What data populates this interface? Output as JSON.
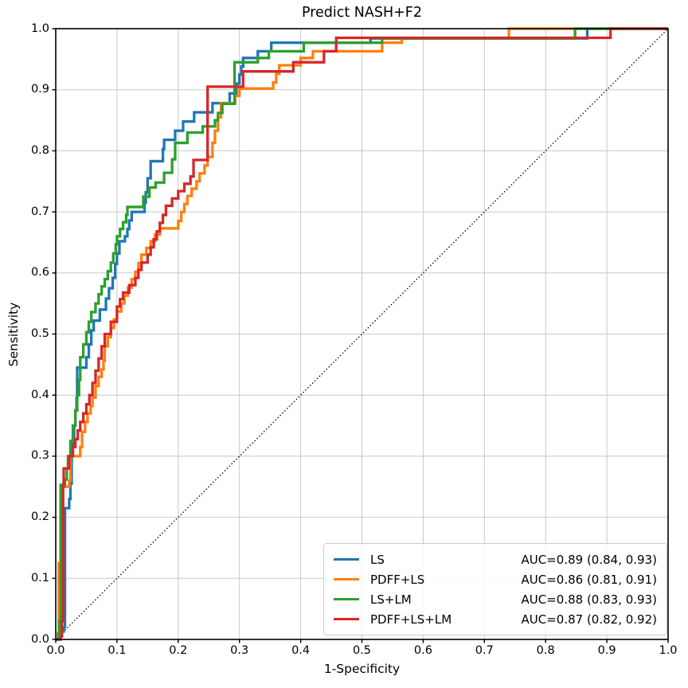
{
  "title": "Predict NASH+F2",
  "axes": {
    "xlabel": "1-Specificity",
    "ylabel": "Sensitivity",
    "xticks": [
      "0.0",
      "0.1",
      "0.2",
      "0.3",
      "0.4",
      "0.5",
      "0.6",
      "0.7",
      "0.8",
      "0.9",
      "1.0"
    ],
    "yticks": [
      "0.0",
      "0.1",
      "0.2",
      "0.3",
      "0.4",
      "0.5",
      "0.6",
      "0.7",
      "0.8",
      "0.9",
      "1.0"
    ]
  },
  "style_colors": {
    "grid": "#c8c8c8",
    "spine": "#000000",
    "diagonal": "#000000"
  },
  "chart_data": {
    "type": "line",
    "subtype": "roc-step-curves",
    "title": "Predict NASH+F2",
    "xlabel": "1-Specificity",
    "ylabel": "Sensitivity",
    "xlim": [
      0,
      1
    ],
    "ylim": [
      0,
      1
    ],
    "grid": true,
    "diagonal_reference": true,
    "legend_position": "lower right",
    "series": [
      {
        "name": "LS",
        "auc_label": "AUC=0.89 (0.84, 0.93)",
        "color": "#1f77b4",
        "points": [
          [
            0,
            0
          ],
          [
            0.006,
            0.005
          ],
          [
            0.01,
            0.013
          ],
          [
            0.013,
            0.02
          ],
          [
            0.015,
            0.215
          ],
          [
            0.022,
            0.23
          ],
          [
            0.024,
            0.255
          ],
          [
            0.026,
            0.3
          ],
          [
            0.028,
            0.325
          ],
          [
            0.03,
            0.35
          ],
          [
            0.032,
            0.375
          ],
          [
            0.034,
            0.395
          ],
          [
            0.035,
            0.445
          ],
          [
            0.05,
            0.462
          ],
          [
            0.054,
            0.483
          ],
          [
            0.058,
            0.506
          ],
          [
            0.062,
            0.522
          ],
          [
            0.072,
            0.54
          ],
          [
            0.082,
            0.558
          ],
          [
            0.087,
            0.575
          ],
          [
            0.093,
            0.592
          ],
          [
            0.097,
            0.615
          ],
          [
            0.1,
            0.632
          ],
          [
            0.104,
            0.652
          ],
          [
            0.113,
            0.66
          ],
          [
            0.117,
            0.672
          ],
          [
            0.12,
            0.686
          ],
          [
            0.124,
            0.7
          ],
          [
            0.145,
            0.715
          ],
          [
            0.147,
            0.732
          ],
          [
            0.15,
            0.755
          ],
          [
            0.155,
            0.783
          ],
          [
            0.175,
            0.803
          ],
          [
            0.177,
            0.818
          ],
          [
            0.195,
            0.833
          ],
          [
            0.208,
            0.848
          ],
          [
            0.226,
            0.863
          ],
          [
            0.256,
            0.878
          ],
          [
            0.284,
            0.894
          ],
          [
            0.295,
            0.91
          ],
          [
            0.3,
            0.925
          ],
          [
            0.303,
            0.938
          ],
          [
            0.306,
            0.952
          ],
          [
            0.33,
            0.963
          ],
          [
            0.352,
            0.977
          ],
          [
            0.514,
            0.984
          ],
          [
            0.868,
            1.0
          ],
          [
            1,
            1
          ]
        ]
      },
      {
        "name": "PDFF+LS",
        "auc_label": "AUC=0.86 (0.81, 0.91)",
        "color": "#ff7f0e",
        "points": [
          [
            0,
            0
          ],
          [
            0.004,
            0.01
          ],
          [
            0.005,
            0.125
          ],
          [
            0.008,
            0.19
          ],
          [
            0.009,
            0.25
          ],
          [
            0.022,
            0.26
          ],
          [
            0.024,
            0.3
          ],
          [
            0.04,
            0.315
          ],
          [
            0.043,
            0.34
          ],
          [
            0.048,
            0.356
          ],
          [
            0.052,
            0.37
          ],
          [
            0.057,
            0.382
          ],
          [
            0.06,
            0.396
          ],
          [
            0.065,
            0.415
          ],
          [
            0.07,
            0.43
          ],
          [
            0.075,
            0.442
          ],
          [
            0.078,
            0.456
          ],
          [
            0.08,
            0.48
          ],
          [
            0.085,
            0.495
          ],
          [
            0.09,
            0.51
          ],
          [
            0.095,
            0.524
          ],
          [
            0.1,
            0.537
          ],
          [
            0.107,
            0.55
          ],
          [
            0.112,
            0.563
          ],
          [
            0.118,
            0.576
          ],
          [
            0.124,
            0.59
          ],
          [
            0.13,
            0.602
          ],
          [
            0.135,
            0.616
          ],
          [
            0.14,
            0.63
          ],
          [
            0.148,
            0.641
          ],
          [
            0.155,
            0.652
          ],
          [
            0.162,
            0.663
          ],
          [
            0.17,
            0.673
          ],
          [
            0.2,
            0.685
          ],
          [
            0.205,
            0.7
          ],
          [
            0.21,
            0.713
          ],
          [
            0.215,
            0.726
          ],
          [
            0.222,
            0.738
          ],
          [
            0.23,
            0.75
          ],
          [
            0.235,
            0.763
          ],
          [
            0.243,
            0.776
          ],
          [
            0.248,
            0.79
          ],
          [
            0.256,
            0.813
          ],
          [
            0.26,
            0.833
          ],
          [
            0.265,
            0.855
          ],
          [
            0.27,
            0.878
          ],
          [
            0.293,
            0.89
          ],
          [
            0.3,
            0.902
          ],
          [
            0.355,
            0.912
          ],
          [
            0.36,
            0.926
          ],
          [
            0.365,
            0.94
          ],
          [
            0.4,
            0.952
          ],
          [
            0.42,
            0.963
          ],
          [
            0.533,
            0.977
          ],
          [
            0.565,
            0.984
          ],
          [
            0.74,
            1.0
          ],
          [
            1,
            1
          ]
        ]
      },
      {
        "name": "LS+LM",
        "auc_label": "AUC=0.88 (0.83, 0.93)",
        "color": "#2ca02c",
        "points": [
          [
            0,
            0
          ],
          [
            0.004,
            0.01
          ],
          [
            0.006,
            0.03
          ],
          [
            0.008,
            0.253
          ],
          [
            0.015,
            0.262
          ],
          [
            0.018,
            0.28
          ],
          [
            0.02,
            0.3
          ],
          [
            0.024,
            0.325
          ],
          [
            0.028,
            0.35
          ],
          [
            0.032,
            0.375
          ],
          [
            0.035,
            0.4
          ],
          [
            0.038,
            0.425
          ],
          [
            0.04,
            0.462
          ],
          [
            0.045,
            0.483
          ],
          [
            0.05,
            0.503
          ],
          [
            0.054,
            0.52
          ],
          [
            0.058,
            0.536
          ],
          [
            0.065,
            0.55
          ],
          [
            0.07,
            0.565
          ],
          [
            0.075,
            0.578
          ],
          [
            0.08,
            0.59
          ],
          [
            0.085,
            0.603
          ],
          [
            0.09,
            0.617
          ],
          [
            0.094,
            0.632
          ],
          [
            0.098,
            0.647
          ],
          [
            0.1,
            0.66
          ],
          [
            0.105,
            0.672
          ],
          [
            0.11,
            0.683
          ],
          [
            0.115,
            0.695
          ],
          [
            0.117,
            0.708
          ],
          [
            0.143,
            0.725
          ],
          [
            0.153,
            0.74
          ],
          [
            0.163,
            0.748
          ],
          [
            0.177,
            0.764
          ],
          [
            0.19,
            0.786
          ],
          [
            0.195,
            0.813
          ],
          [
            0.215,
            0.83
          ],
          [
            0.24,
            0.84
          ],
          [
            0.26,
            0.85
          ],
          [
            0.265,
            0.862
          ],
          [
            0.272,
            0.877
          ],
          [
            0.292,
            0.945
          ],
          [
            0.33,
            0.952
          ],
          [
            0.348,
            0.963
          ],
          [
            0.405,
            0.977
          ],
          [
            0.533,
            0.984
          ],
          [
            0.848,
            1.0
          ],
          [
            1,
            1
          ]
        ]
      },
      {
        "name": "PDFF+LS+LM",
        "auc_label": "AUC=0.87 (0.82, 0.92)",
        "color": "#d62728",
        "points": [
          [
            0,
            0
          ],
          [
            0.008,
            0.005
          ],
          [
            0.01,
            0.03
          ],
          [
            0.012,
            0.25
          ],
          [
            0.013,
            0.28
          ],
          [
            0.022,
            0.3
          ],
          [
            0.028,
            0.315
          ],
          [
            0.032,
            0.328
          ],
          [
            0.036,
            0.342
          ],
          [
            0.04,
            0.356
          ],
          [
            0.045,
            0.37
          ],
          [
            0.05,
            0.385
          ],
          [
            0.055,
            0.4
          ],
          [
            0.06,
            0.42
          ],
          [
            0.065,
            0.44
          ],
          [
            0.07,
            0.46
          ],
          [
            0.075,
            0.48
          ],
          [
            0.08,
            0.5
          ],
          [
            0.09,
            0.52
          ],
          [
            0.1,
            0.545
          ],
          [
            0.105,
            0.557
          ],
          [
            0.11,
            0.568
          ],
          [
            0.12,
            0.58
          ],
          [
            0.13,
            0.592
          ],
          [
            0.135,
            0.605
          ],
          [
            0.14,
            0.617
          ],
          [
            0.15,
            0.63
          ],
          [
            0.155,
            0.642
          ],
          [
            0.16,
            0.655
          ],
          [
            0.165,
            0.668
          ],
          [
            0.17,
            0.682
          ],
          [
            0.175,
            0.695
          ],
          [
            0.18,
            0.71
          ],
          [
            0.19,
            0.722
          ],
          [
            0.2,
            0.734
          ],
          [
            0.21,
            0.746
          ],
          [
            0.22,
            0.758
          ],
          [
            0.225,
            0.785
          ],
          [
            0.248,
            0.905
          ],
          [
            0.306,
            0.93
          ],
          [
            0.388,
            0.945
          ],
          [
            0.438,
            0.963
          ],
          [
            0.458,
            0.985
          ],
          [
            0.906,
            1.0
          ],
          [
            1,
            1
          ]
        ]
      }
    ]
  }
}
